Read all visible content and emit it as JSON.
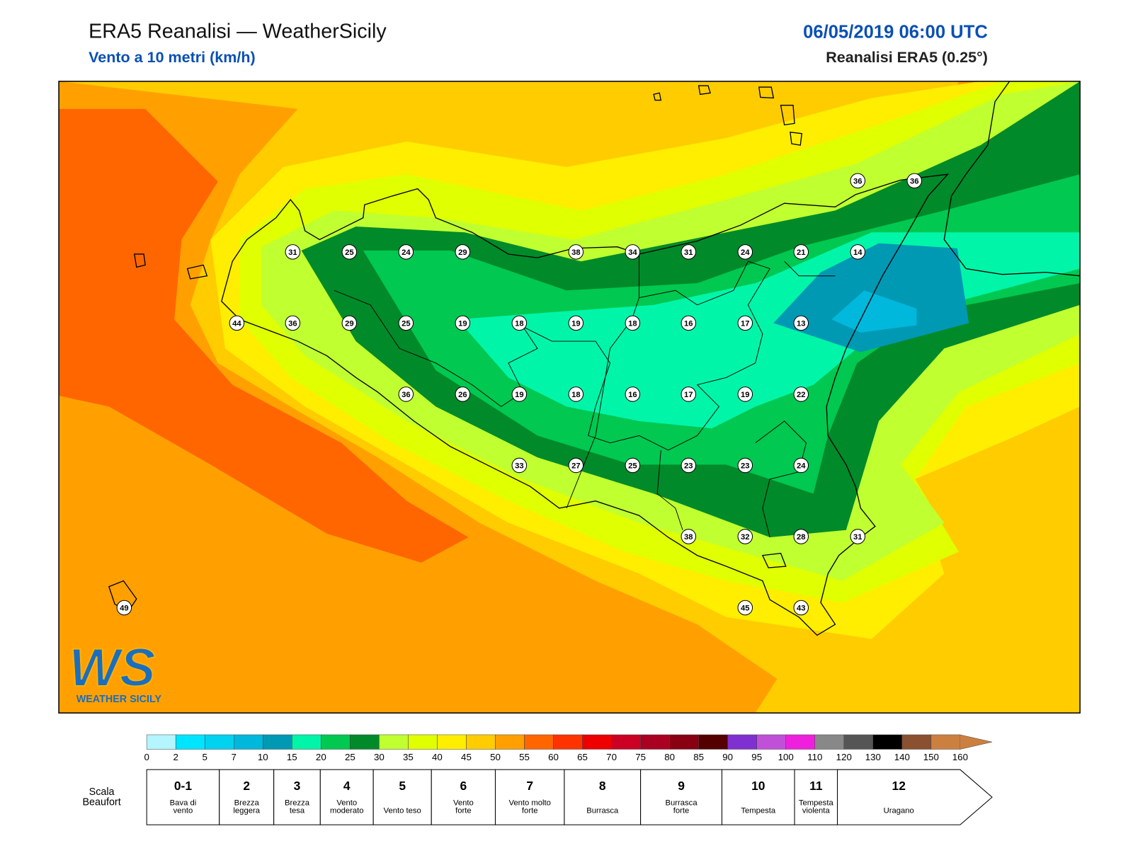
{
  "header": {
    "title": "ERA5 Reanalisi — WeatherSicily",
    "subtitle": "Vento a 10 metri (km/h)",
    "date": "06/05/2019 06:00 UTC",
    "source": "Reanalisi ERA5 (0.25°)"
  },
  "stations": [
    36,
    36,
    31,
    25,
    24,
    29,
    38,
    34,
    31,
    24,
    21,
    14,
    44,
    36,
    29,
    25,
    19,
    18,
    19,
    18,
    16,
    17,
    13,
    36,
    26,
    19,
    18,
    16,
    17,
    19,
    22,
    33,
    27,
    25,
    23,
    23,
    24,
    38,
    32,
    28,
    31,
    49,
    45,
    43
  ],
  "logo": {
    "mark": "WS",
    "name": "WEATHER SICILY"
  },
  "colorbar": {
    "ticks": [
      0,
      2,
      5,
      7,
      10,
      15,
      20,
      25,
      30,
      35,
      40,
      45,
      50,
      55,
      60,
      65,
      70,
      75,
      80,
      85,
      90,
      95,
      100,
      110,
      120,
      130,
      140,
      150,
      160
    ],
    "colors": [
      "#b4f5ff",
      "#00e5ff",
      "#00d2f0",
      "#00b8dc",
      "#0099b4",
      "#00f5a8",
      "#00c850",
      "#008a2a",
      "#c0ff30",
      "#e0ff00",
      "#ffee00",
      "#ffcc00",
      "#ffa000",
      "#ff6600",
      "#ff3300",
      "#ee0000",
      "#cc0022",
      "#aa0022",
      "#880011",
      "#550000",
      "#8030d0",
      "#c050d8",
      "#ee20dd",
      "#888888",
      "#555555",
      "#000000",
      "#8b5030",
      "#cc8040"
    ]
  },
  "beaufort": {
    "label": [
      "Scala",
      "Beaufort"
    ],
    "classes": [
      {
        "force": "0-1",
        "desc": [
          "Bava di",
          "vento"
        ]
      },
      {
        "force": "2",
        "desc": [
          "Brezza",
          "leggera"
        ]
      },
      {
        "force": "3",
        "desc": [
          "Brezza",
          "tesa"
        ]
      },
      {
        "force": "4",
        "desc": [
          "Vento",
          "moderato"
        ]
      },
      {
        "force": "5",
        "desc": [
          "Vento teso"
        ]
      },
      {
        "force": "6",
        "desc": [
          "Vento",
          "forte"
        ]
      },
      {
        "force": "7",
        "desc": [
          "Vento molto",
          "forte"
        ]
      },
      {
        "force": "8",
        "desc": [
          "Burrasca"
        ]
      },
      {
        "force": "9",
        "desc": [
          "Burrasca",
          "forte"
        ]
      },
      {
        "force": "10",
        "desc": [
          "Tempesta"
        ]
      },
      {
        "force": "11",
        "desc": [
          "Tempesta",
          "violenta"
        ]
      },
      {
        "force": "12",
        "desc": [
          "Uragano"
        ]
      }
    ]
  }
}
